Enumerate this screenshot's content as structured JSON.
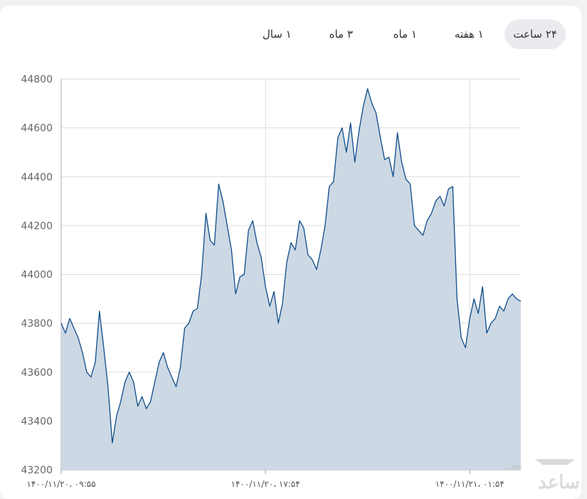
{
  "tabs": [
    {
      "label": "۲۴ ساعت",
      "active": true
    },
    {
      "label": "۱ هفته",
      "active": false
    },
    {
      "label": "۱ ماه",
      "active": false
    },
    {
      "label": "۳ ماه",
      "active": false
    },
    {
      "label": "۱ سال",
      "active": false
    }
  ],
  "watermark": {
    "text": "ساعد",
    "sub": "نیوز"
  },
  "colors": {
    "line": "#0f4c8a",
    "area": "#ccd8e3",
    "grid": "#dddddd"
  },
  "chart_data": {
    "type": "area",
    "ylim": [
      43200,
      44800
    ],
    "yticks": [
      43200,
      43400,
      43600,
      43800,
      44000,
      44200,
      44400,
      44600,
      44800
    ],
    "grid": true,
    "xticks": [
      {
        "label": "۰۹:۵۵ ،۱۴۰۰/۱۱/۲۰",
        "index": 0
      },
      {
        "label": "۱۷:۵۴ ،۱۴۰۰/۱۱/۲۰",
        "index": 48
      },
      {
        "label": "۰۱:۵۴ ،۱۴۰۰/۱۱/۲۱",
        "index": 96
      }
    ],
    "values": [
      43800,
      43760,
      43820,
      43780,
      43740,
      43680,
      43600,
      43580,
      43640,
      43850,
      43700,
      43540,
      43310,
      43420,
      43480,
      43560,
      43600,
      43560,
      43460,
      43500,
      43450,
      43480,
      43560,
      43640,
      43680,
      43620,
      43580,
      43540,
      43620,
      43780,
      43800,
      43850,
      43860,
      44000,
      44250,
      44140,
      44120,
      44370,
      44300,
      44200,
      44100,
      43920,
      43990,
      44000,
      44180,
      44220,
      44130,
      44070,
      43950,
      43870,
      43930,
      43800,
      43880,
      44050,
      44130,
      44100,
      44220,
      44190,
      44080,
      44060,
      44020,
      44100,
      44200,
      44360,
      44380,
      44560,
      44600,
      44500,
      44620,
      44460,
      44590,
      44690,
      44760,
      44700,
      44660,
      44560,
      44470,
      44480,
      44400,
      44580,
      44460,
      44390,
      44370,
      44200,
      44180,
      44160,
      44220,
      44250,
      44300,
      44320,
      44280,
      44350,
      44360,
      43900,
      43740,
      43700,
      43820,
      43900,
      43840,
      43950,
      43760,
      43800,
      43820,
      43870,
      43850,
      43900,
      43920,
      43900,
      43890
    ],
    "xlabel": "",
    "ylabel": ""
  }
}
